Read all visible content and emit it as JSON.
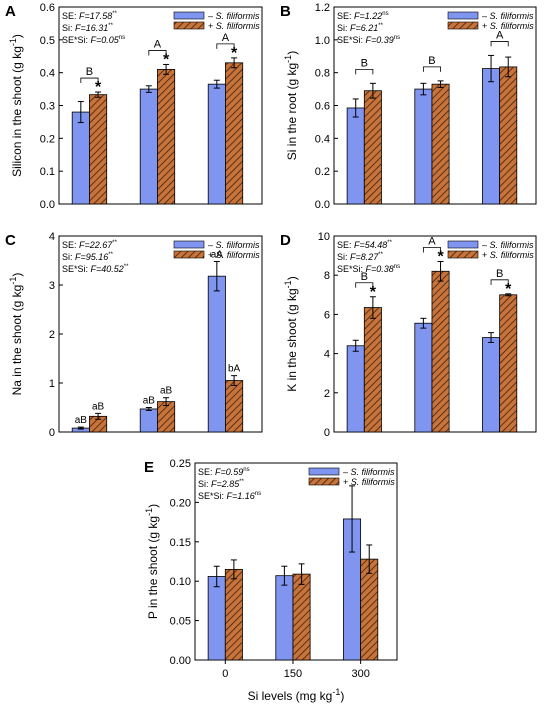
{
  "figure": {
    "legend_items": [
      "– S. filiformis",
      "+ S. filiformis"
    ],
    "shared_xlabel": "Si levels (mg kg⁻¹)",
    "colors": {
      "minus": "#7f95f0",
      "plus": "#c8733a",
      "hatch": "#3a2010"
    }
  },
  "chart_data": [
    {
      "panel": "A",
      "type": "bar",
      "ylabel": "Silicon in the shoot (g kg⁻¹)",
      "ylim": [
        0,
        0.6
      ],
      "yticks": [
        "0.0",
        "0.1",
        "0.2",
        "0.3",
        "0.4",
        "0.5",
        "0.6"
      ],
      "categories": [
        "0",
        "150",
        "300"
      ],
      "series": [
        {
          "name": "– S. filiformis",
          "values": [
            0.28,
            0.35,
            0.365
          ],
          "errors": [
            0.032,
            0.01,
            0.012
          ]
        },
        {
          "name": "+ S. filiformis",
          "values": [
            0.333,
            0.41,
            0.43
          ],
          "errors": [
            0.008,
            0.015,
            0.015
          ]
        }
      ],
      "stats": [
        {
          "label": "SE: ",
          "f": "F=17.58",
          "sup": "**"
        },
        {
          "label": "Si: ",
          "f": "F=16.31",
          "sup": "**"
        },
        {
          "label": "SE*Si: ",
          "f": "F=0.05",
          "sup": "ns"
        }
      ],
      "group_letters": [
        "B",
        "A",
        "A"
      ],
      "bar_marks": [
        [
          null,
          "*"
        ],
        [
          null,
          "*"
        ],
        [
          null,
          "*"
        ]
      ]
    },
    {
      "panel": "B",
      "type": "bar",
      "ylabel": "Si in the root (g kg⁻¹)",
      "ylim": [
        0,
        1.2
      ],
      "yticks": [
        "0.0",
        "0.2",
        "0.4",
        "0.6",
        "0.8",
        "1.0",
        "1.2"
      ],
      "categories": [
        "0",
        "150",
        "300"
      ],
      "series": [
        {
          "name": "– S. filiformis",
          "values": [
            0.585,
            0.7,
            0.825
          ],
          "errors": [
            0.055,
            0.035,
            0.08
          ]
        },
        {
          "name": "+ S. filiformis",
          "values": [
            0.69,
            0.73,
            0.835
          ],
          "errors": [
            0.045,
            0.02,
            0.06
          ]
        }
      ],
      "stats": [
        {
          "label": "SE: ",
          "f": "F=1.22",
          "sup": "ns"
        },
        {
          "label": "Si: ",
          "f": "F=6.21",
          "sup": "**"
        },
        {
          "label": "SE*Si: ",
          "f": "F=0.39",
          "sup": "ns"
        }
      ],
      "group_letters": [
        "B",
        "B",
        "A"
      ],
      "bar_marks": [
        [
          null,
          null
        ],
        [
          null,
          null
        ],
        [
          null,
          null
        ]
      ]
    },
    {
      "panel": "C",
      "type": "bar",
      "ylabel": "Na in the shoot (g kg⁻¹)",
      "ylim": [
        0,
        4
      ],
      "yticks": [
        "0",
        "1",
        "2",
        "3",
        "4"
      ],
      "categories": [
        "0",
        "150",
        "300"
      ],
      "series": [
        {
          "name": "– S. filiformis",
          "values": [
            0.08,
            0.47,
            3.18
          ],
          "errors": [
            0.02,
            0.03,
            0.3
          ]
        },
        {
          "name": "+ S. filiformis",
          "values": [
            0.32,
            0.62,
            1.05
          ],
          "errors": [
            0.06,
            0.08,
            0.1
          ]
        }
      ],
      "stats": [
        {
          "label": "SE: ",
          "f": "F=22.67",
          "sup": "**"
        },
        {
          "label": "Si: ",
          "f": "F=95.16",
          "sup": "**"
        },
        {
          "label": "SE*Si: ",
          "f": "F=40.52",
          "sup": "**"
        }
      ],
      "group_letters": [
        null,
        null,
        null
      ],
      "bar_marks": [
        [
          "aB",
          "aB"
        ],
        [
          "aB",
          "aB"
        ],
        [
          "aA",
          "bA"
        ]
      ]
    },
    {
      "panel": "D",
      "type": "bar",
      "ylabel": "K in the shoot (g kg⁻¹)",
      "ylim": [
        0,
        10
      ],
      "yticks": [
        "0",
        "2",
        "4",
        "6",
        "8",
        "10"
      ],
      "categories": [
        "0",
        "150",
        "300"
      ],
      "series": [
        {
          "name": "– S. filiformis",
          "values": [
            4.4,
            5.55,
            4.82
          ],
          "errors": [
            0.28,
            0.25,
            0.25
          ]
        },
        {
          "name": "+ S. filiformis",
          "values": [
            6.35,
            8.2,
            7.0
          ],
          "errors": [
            0.55,
            0.5,
            0.05
          ]
        }
      ],
      "stats": [
        {
          "label": "SE: ",
          "f": "F=54.48",
          "sup": "**"
        },
        {
          "label": "Si: ",
          "f": "F=8.27",
          "sup": "**"
        },
        {
          "label": "SE*Si: ",
          "f": "F=0.38",
          "sup": "ns"
        }
      ],
      "group_letters": [
        "B",
        "A",
        "B"
      ],
      "bar_marks": [
        [
          null,
          "*"
        ],
        [
          null,
          "*"
        ],
        [
          null,
          "*"
        ]
      ]
    },
    {
      "panel": "E",
      "type": "bar",
      "ylabel": "P in the shoot (g kg⁻¹)",
      "xlabel": "Si levels (mg kg⁻¹)",
      "ylim": [
        0,
        0.25
      ],
      "yticks": [
        "0.00",
        "0.05",
        "0.10",
        "0.15",
        "0.20",
        "0.25"
      ],
      "categories": [
        "0",
        "150",
        "300"
      ],
      "series": [
        {
          "name": "– S. filiformis",
          "values": [
            0.106,
            0.107,
            0.179
          ],
          "errors": [
            0.013,
            0.012,
            0.042
          ]
        },
        {
          "name": "+ S. filiformis",
          "values": [
            0.115,
            0.109,
            0.128
          ],
          "errors": [
            0.012,
            0.013,
            0.018
          ]
        }
      ],
      "stats": [
        {
          "label": "SE: ",
          "f": "F=0.59",
          "sup": "ns"
        },
        {
          "label": "Si: ",
          "f": "F=2.85",
          "sup": "**"
        },
        {
          "label": "SE*Si: ",
          "f": "F=1.16",
          "sup": "ns"
        }
      ],
      "group_letters": [
        null,
        null,
        null
      ],
      "bar_marks": [
        [
          null,
          null
        ],
        [
          null,
          null
        ],
        [
          null,
          null
        ]
      ]
    }
  ]
}
